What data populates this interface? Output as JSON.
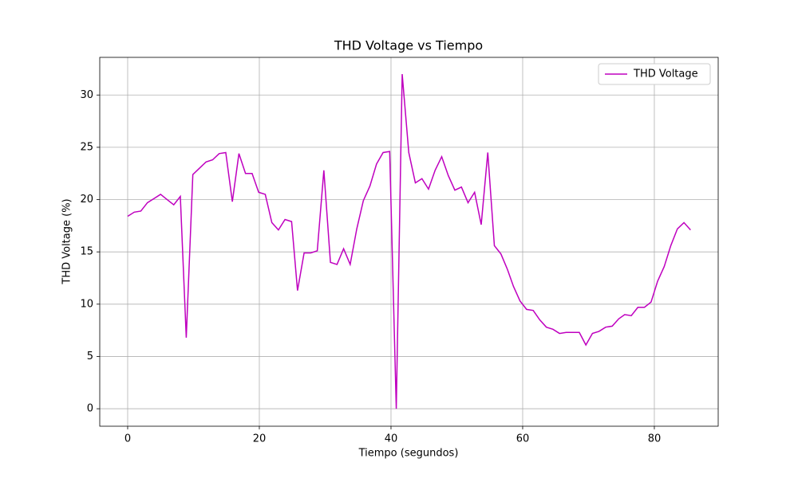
{
  "chart_data": {
    "type": "line",
    "title": "THD Voltage vs Tiempo",
    "x_label": "Tiempo (segundos)",
    "y_label": "THD Voltage (%)",
    "x": [
      0,
      1.0,
      2.0,
      3.0,
      4.0,
      5.0,
      6.0,
      7.0,
      8.0,
      8.9,
      9.9,
      10.9,
      11.9,
      12.9,
      13.9,
      14.9,
      15.9,
      16.9,
      17.9,
      18.9,
      19.9,
      20.9,
      21.9,
      22.9,
      23.9,
      24.9,
      25.8,
      26.8,
      27.8,
      28.8,
      29.8,
      30.8,
      31.8,
      32.8,
      33.8,
      34.8,
      35.8,
      36.8,
      37.8,
      38.8,
      39.8,
      40.8,
      41.7,
      42.7,
      43.7,
      44.7,
      45.7,
      46.7,
      47.7,
      48.7,
      49.7,
      50.7,
      51.7,
      52.7,
      53.7,
      54.7,
      55.7,
      56.7,
      57.7,
      58.6,
      59.6,
      60.6,
      61.6,
      62.6,
      63.6,
      64.6,
      65.6,
      66.6,
      67.6,
      68.6,
      69.6,
      70.6,
      71.6,
      72.6,
      73.6,
      74.6,
      75.5,
      76.5,
      77.5,
      78.5,
      79.5,
      80.5,
      81.5,
      82.5,
      83.5,
      84.5,
      85.5
    ],
    "series": [
      {
        "name": "THD Voltage",
        "color": "#bf00bf",
        "values": [
          18.4,
          18.8,
          18.9,
          19.7,
          20.1,
          20.5,
          20.0,
          19.5,
          20.3,
          6.8,
          22.4,
          23.0,
          23.6,
          23.8,
          24.4,
          24.5,
          19.8,
          24.4,
          22.5,
          22.5,
          20.7,
          20.5,
          17.8,
          17.1,
          18.1,
          17.9,
          11.3,
          14.9,
          14.9,
          15.1,
          22.8,
          14.0,
          13.8,
          15.3,
          13.8,
          17.2,
          19.9,
          21.3,
          23.4,
          24.5,
          24.6,
          0,
          32.0,
          24.5,
          21.6,
          22.0,
          21.0,
          22.8,
          24.1,
          22.3,
          20.9,
          21.2,
          19.7,
          20.7,
          17.6,
          24.5,
          15.6,
          14.8,
          13.3,
          11.7,
          10.3,
          9.5,
          9.4,
          8.5,
          7.8,
          7.6,
          7.2,
          7.3,
          7.3,
          7.3,
          6.1,
          7.2,
          7.4,
          7.8,
          7.9,
          8.6,
          9.0,
          8.9,
          9.7,
          9.7,
          10.2,
          12.2,
          13.6,
          15.6,
          17.2,
          17.8,
          17.1
        ]
      }
    ],
    "xlim": [
      -4.24,
      89.7
    ],
    "xticks": [
      0,
      20,
      40,
      60,
      80
    ],
    "ylim": [
      -1.67,
      33.6
    ],
    "yticks": [
      0,
      5,
      10,
      15,
      20,
      25,
      30
    ],
    "grid": true,
    "legend": "upper right"
  }
}
